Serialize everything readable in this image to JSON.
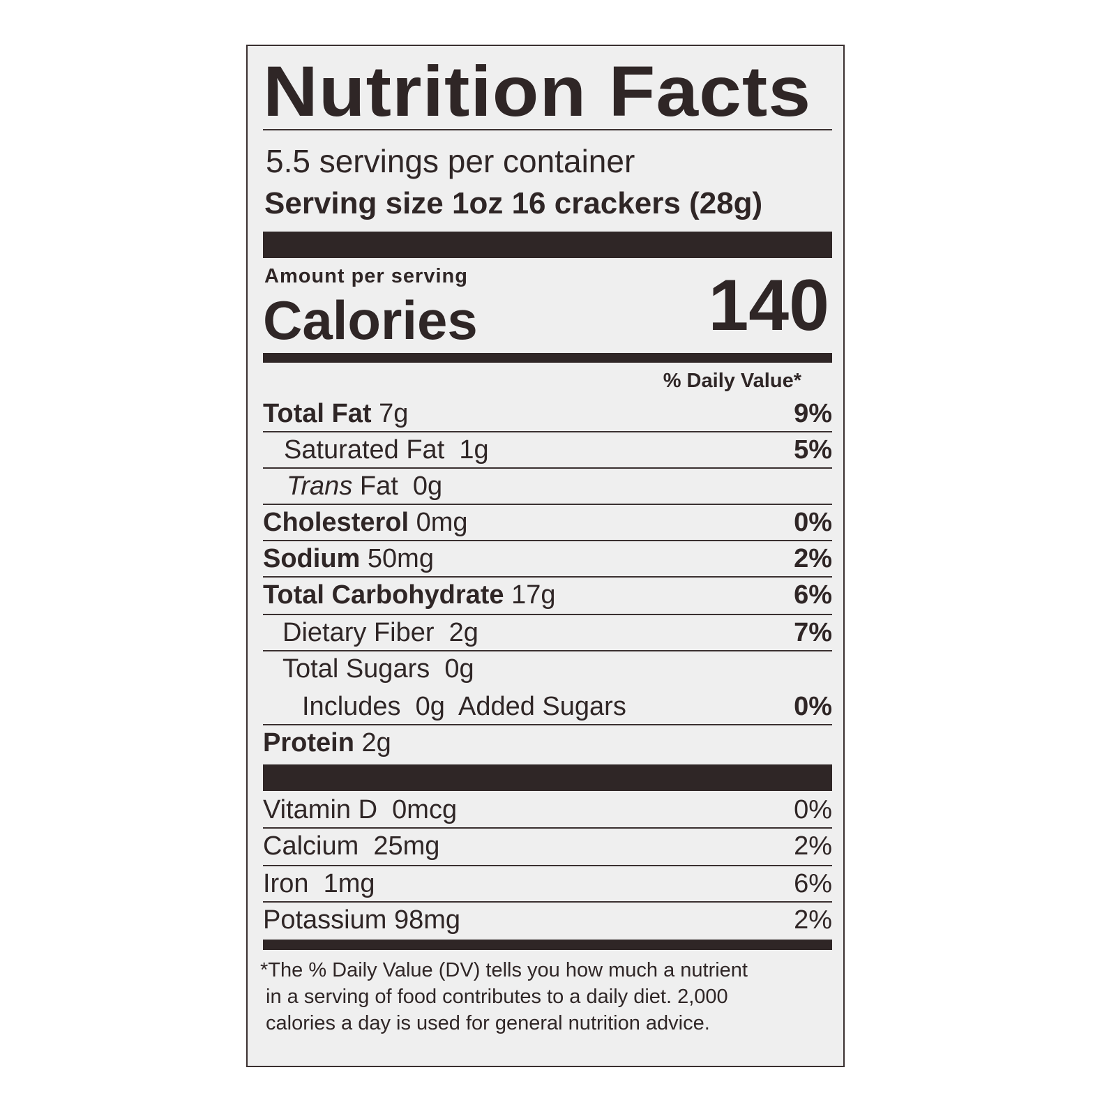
{
  "title": "Nutrition Facts",
  "servings_per_container": "5.5 servings per container",
  "serving_size": "Serving size 1oz 16 crackers (28g)",
  "amount_per_serving": "Amount per serving",
  "calories_label": "Calories",
  "calories_value": "140",
  "daily_value_header": "% Daily Value*",
  "nutrients": [
    {
      "name": "Total Fat",
      "amount": "7g",
      "dv": "9%"
    },
    {
      "name": "Saturated Fat",
      "amount": "1g",
      "dv": "5%"
    },
    {
      "name": "Trans",
      "name_suffix": "Fat",
      "amount": "0g",
      "dv": ""
    },
    {
      "name": "Cholesterol",
      "amount": "0mg",
      "dv": "0%"
    },
    {
      "name": "Sodium",
      "amount": "50mg",
      "dv": "2%"
    },
    {
      "name": "Total Carbohydrate",
      "amount": "17g",
      "dv": "6%"
    },
    {
      "name": "Dietary Fiber",
      "amount": "2g",
      "dv": "7%"
    },
    {
      "name": "Total Sugars",
      "amount": "0g",
      "dv": ""
    },
    {
      "name": "Includes",
      "amount": "0g",
      "name_suffix": "Added Sugars",
      "dv": "0%"
    },
    {
      "name": "Protein",
      "amount": "2g",
      "dv": ""
    }
  ],
  "vitamins": [
    {
      "name": "Vitamin D",
      "amount": "0mcg",
      "dv": "0%"
    },
    {
      "name": "Calcium",
      "amount": "25mg",
      "dv": "2%"
    },
    {
      "name": "Iron",
      "amount": "1mg",
      "dv": "6%"
    },
    {
      "name": "Potassium",
      "amount": "98mg",
      "dv": "2%"
    }
  ],
  "footnote": [
    "*The % Daily Value (DV) tells you how much a nutrient",
    " in a serving of food contributes to a daily diet. 2,000",
    " calories a day is used for general nutrition advice."
  ]
}
